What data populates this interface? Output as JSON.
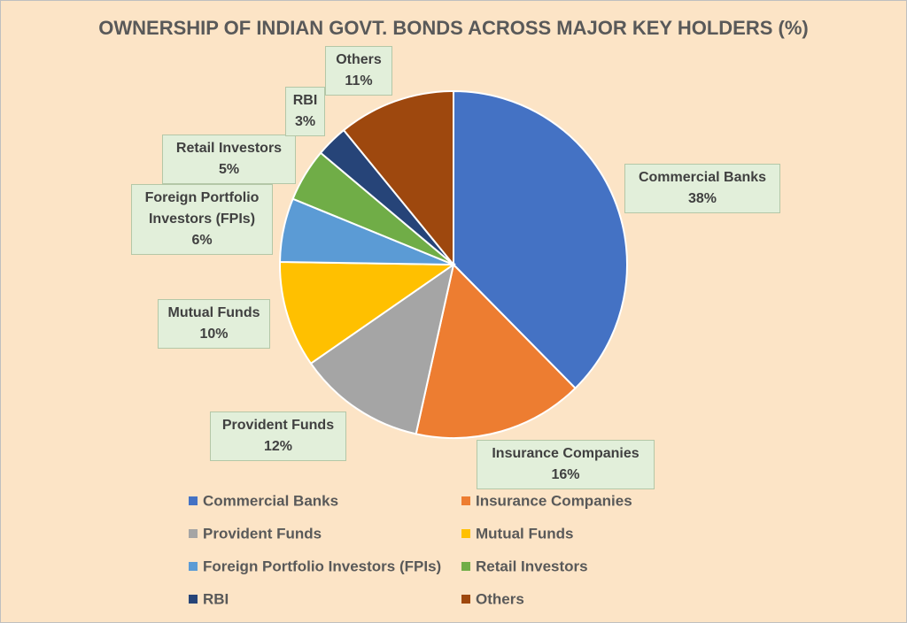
{
  "chart_data": {
    "type": "pie",
    "title": "OWNERSHIP OF INDIAN GOVT. BONDS ACROSS MAJOR KEY HOLDERS (%)",
    "categories": [
      "Commercial Banks",
      "Insurance Companies",
      "Provident Funds",
      "Mutual Funds",
      "Foreign Portfolio Investors (FPIs)",
      "Retail Investors",
      "RBI",
      "Others"
    ],
    "values": [
      38,
      16,
      12,
      10,
      6,
      5,
      3,
      11
    ],
    "value_labels": [
      "38%",
      "16%",
      "12%",
      "10%",
      "6%",
      "5%",
      "3%",
      "11%"
    ],
    "colors": [
      "#4472c4",
      "#ed7d31",
      "#a5a5a5",
      "#ffc000",
      "#5b9bd5",
      "#70ad47",
      "#264478",
      "#9e480e"
    ],
    "legend": "bottom"
  }
}
